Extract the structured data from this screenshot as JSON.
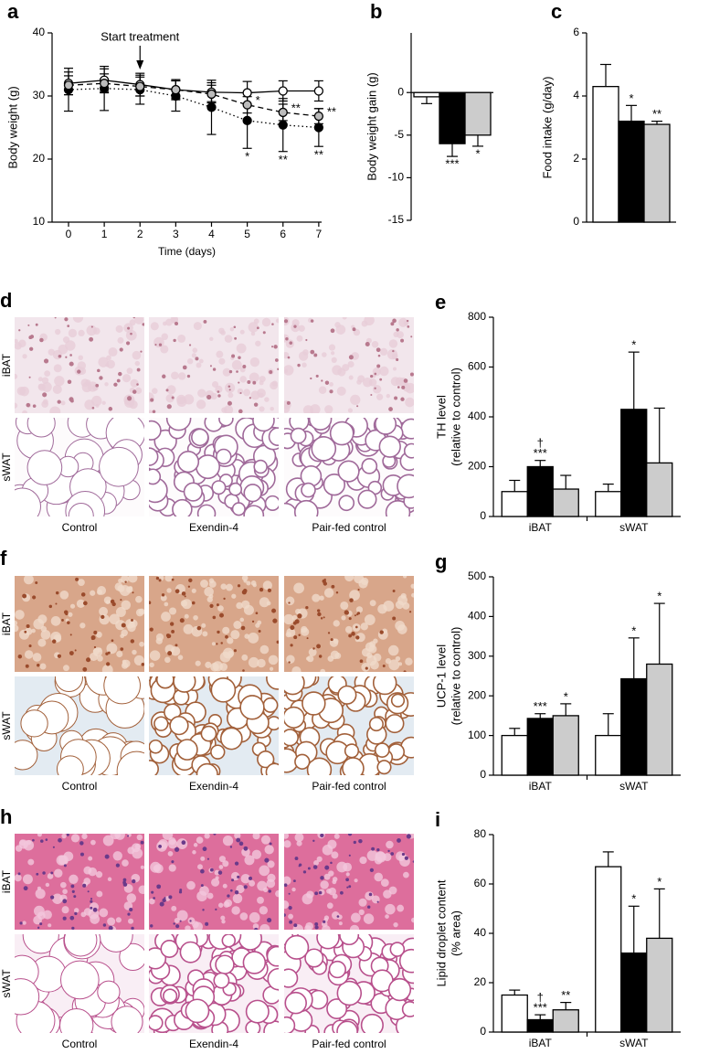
{
  "chart_data": [
    {
      "panel": "a",
      "type": "line",
      "xlabel": "Time (days)",
      "ylabel": [
        "Body weight (g)"
      ],
      "x": [
        0,
        1,
        2,
        3,
        4,
        5,
        6,
        7
      ],
      "xlim": [
        -0.46,
        7.08
      ],
      "xticks": [
        0,
        1,
        2,
        3,
        4,
        5,
        6,
        7
      ],
      "ylim": [
        10,
        40
      ],
      "yticks": [
        10,
        20,
        30,
        40
      ],
      "annotations": [
        {
          "text": "Start treatment",
          "x": 2
        }
      ],
      "series": [
        {
          "color": "#ffffff",
          "line": "solid",
          "values": [
            32,
            32.5,
            31.8,
            31,
            30.6,
            30.5,
            30.8,
            30.8
          ],
          "errors": [
            1.8,
            1.8,
            1.8,
            1.6,
            1.5,
            1.8,
            1.6,
            1.6
          ]
        },
        {
          "color": "#000000",
          "line": "dotted",
          "values": [
            31,
            31.2,
            31,
            30,
            28.2,
            26.1,
            25.4,
            25
          ],
          "errors": [
            3.4,
            3.5,
            2.3,
            2.4,
            4.3,
            4.4,
            4.2,
            3
          ],
          "labels": [
            null,
            null,
            null,
            null,
            null,
            "*",
            "**",
            "**"
          ],
          "label_position": "below"
        },
        {
          "color": "#bbbbbb",
          "line": "dashed",
          "values": [
            31.7,
            32,
            31.5,
            31,
            30.3,
            28.6,
            27.4,
            26.8
          ],
          "errors": [
            1.5,
            1.5,
            1.5,
            1.4,
            1.4,
            1.3,
            1.3,
            1.2
          ],
          "labels": [
            null,
            null,
            null,
            null,
            null,
            "*",
            "**",
            "**"
          ],
          "label_position": "right"
        }
      ]
    },
    {
      "panel": "b",
      "type": "bar",
      "ylabel": [
        "Body weight gain (g)"
      ],
      "ylim": [
        -15,
        7
      ],
      "yticks": [
        0,
        -5,
        -10,
        -15
      ],
      "series": [
        {
          "color": "#ffffff",
          "values": [
            -0.5
          ],
          "errors": [
            0.8
          ]
        },
        {
          "color": "#000000",
          "values": [
            -6
          ],
          "errors": [
            1.5
          ],
          "labels": [
            [
              "***"
            ]
          ]
        },
        {
          "color": "#cccccc",
          "values": [
            -5
          ],
          "errors": [
            1.3
          ],
          "labels": [
            [
              "*"
            ]
          ]
        }
      ]
    },
    {
      "panel": "c",
      "type": "bar",
      "ylabel": [
        "Food intake (g/day)"
      ],
      "ylim": [
        0,
        6
      ],
      "yticks": [
        0,
        2,
        4,
        6
      ],
      "series": [
        {
          "color": "#ffffff",
          "values": [
            4.3
          ],
          "errors": [
            0.7
          ]
        },
        {
          "color": "#000000",
          "values": [
            3.2
          ],
          "errors": [
            0.5
          ],
          "labels": [
            [
              "*"
            ]
          ]
        },
        {
          "color": "#cccccc",
          "values": [
            3.1
          ],
          "errors": [
            0.1
          ],
          "labels": [
            [
              "**"
            ]
          ]
        }
      ]
    },
    {
      "panel": "e",
      "type": "bar",
      "ylabel": [
        "TH level",
        "(relative to control)"
      ],
      "categories": [
        "iBAT",
        "sWAT"
      ],
      "ylim": [
        0,
        800
      ],
      "yticks": [
        0,
        200,
        400,
        600,
        800
      ],
      "series": [
        {
          "color": "#ffffff",
          "values": [
            100,
            100
          ],
          "errors": [
            45,
            30
          ]
        },
        {
          "color": "#000000",
          "values": [
            200,
            430
          ],
          "errors": [
            25,
            230
          ],
          "labels": [
            [
              "†",
              "***"
            ],
            [
              "*"
            ]
          ]
        },
        {
          "color": "#cccccc",
          "values": [
            110,
            215
          ],
          "errors": [
            55,
            220
          ]
        }
      ]
    },
    {
      "panel": "g",
      "type": "bar",
      "ylabel": [
        "UCP-1 level",
        "(relative to control)"
      ],
      "categories": [
        "iBAT",
        "sWAT"
      ],
      "ylim": [
        0,
        500
      ],
      "yticks": [
        0,
        100,
        200,
        300,
        400,
        500
      ],
      "series": [
        {
          "color": "#ffffff",
          "values": [
            100,
            100
          ],
          "errors": [
            18,
            55
          ]
        },
        {
          "color": "#000000",
          "values": [
            143,
            243
          ],
          "errors": [
            12,
            103
          ],
          "labels": [
            [
              "***"
            ],
            [
              "*"
            ]
          ]
        },
        {
          "color": "#cccccc",
          "values": [
            150,
            280
          ],
          "errors": [
            30,
            153
          ],
          "labels": [
            [
              "*"
            ],
            [
              "*"
            ]
          ]
        }
      ]
    },
    {
      "panel": "i",
      "type": "bar",
      "ylabel": [
        "Lipid droplet content",
        "(% area)"
      ],
      "categories": [
        "iBAT",
        "sWAT"
      ],
      "ylim": [
        0,
        80
      ],
      "yticks": [
        0,
        20,
        40,
        60,
        80
      ],
      "series": [
        {
          "color": "#ffffff",
          "values": [
            15,
            67
          ],
          "errors": [
            2,
            6
          ]
        },
        {
          "color": "#000000",
          "values": [
            5,
            32
          ],
          "errors": [
            2,
            19
          ],
          "labels": [
            [
              "†",
              "***"
            ],
            [
              "*"
            ]
          ]
        },
        {
          "color": "#cccccc",
          "values": [
            9,
            38
          ],
          "errors": [
            3,
            20
          ],
          "labels": [
            [
              "**"
            ],
            [
              "*"
            ]
          ]
        }
      ]
    }
  ],
  "micrographs": [
    {
      "panel": "d",
      "rows": [
        "iBAT",
        "sWAT"
      ],
      "columns": [
        "Control",
        "Exendin-4",
        "Pair-fed control"
      ]
    },
    {
      "panel": "f",
      "rows": [
        "iBAT",
        "sWAT"
      ],
      "columns": [
        "Control",
        "Exendin-4",
        "Pair-fed control"
      ]
    },
    {
      "panel": "h",
      "rows": [
        "iBAT",
        "sWAT"
      ],
      "columns": [
        "Control",
        "Exendin-4",
        "Pair-fed control"
      ]
    }
  ]
}
